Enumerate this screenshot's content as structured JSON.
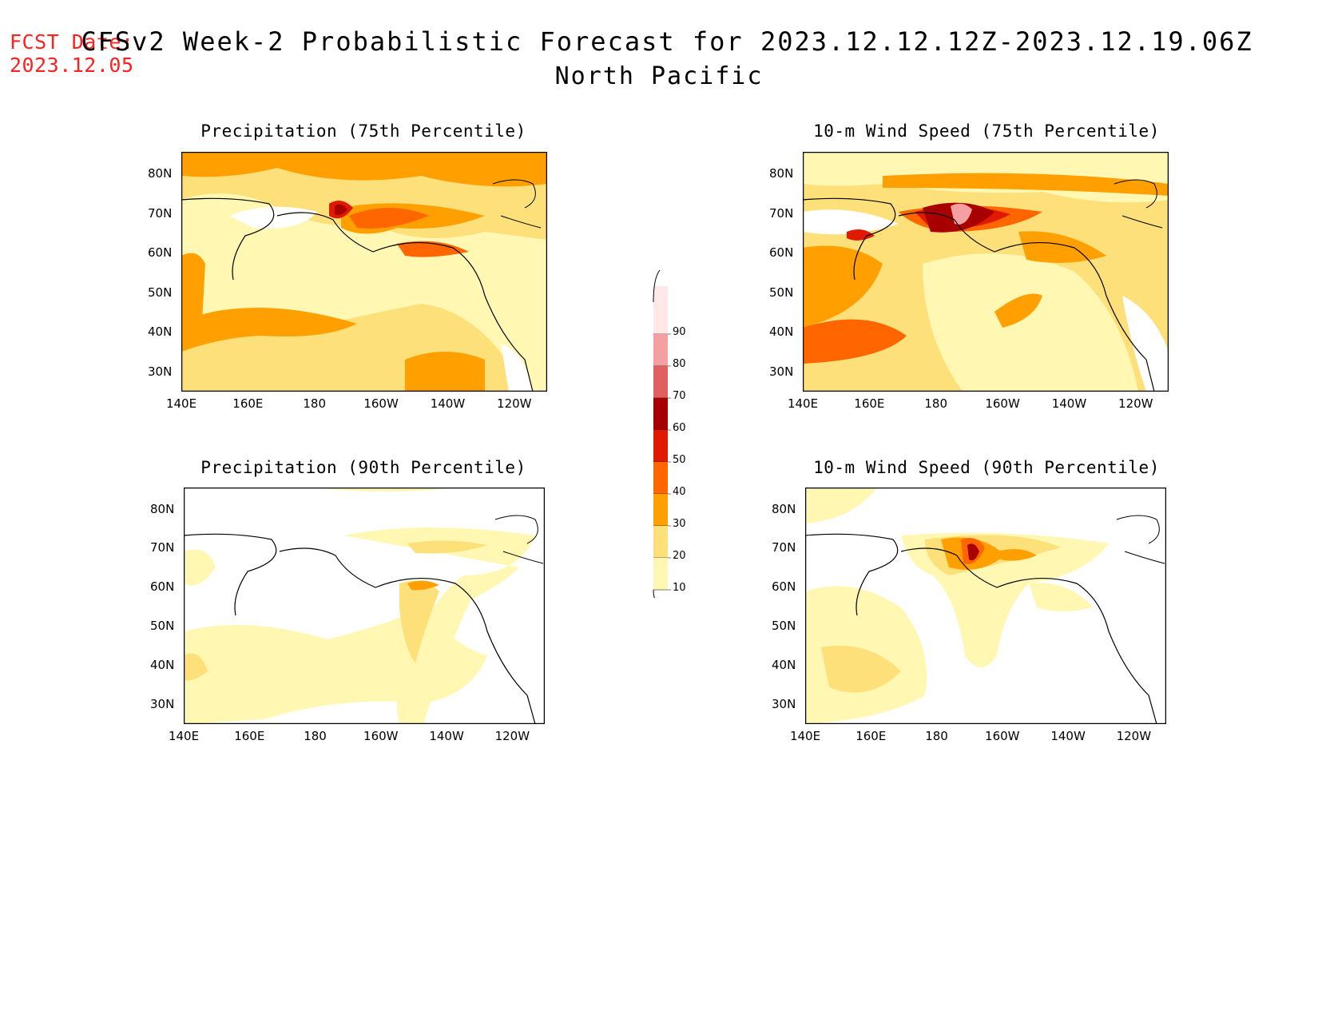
{
  "header": {
    "fcst_label": "FCST Date:",
    "fcst_date": "2023.12.05",
    "title": "CFSv2 Week-2 Probabilistic Forecast for 2023.12.12.12Z-2023.12.19.06Z",
    "subtitle": "North Pacific"
  },
  "panels": [
    {
      "title": "Precipitation (75th Percentile)"
    },
    {
      "title": "10-m Wind Speed (75th Percentile)"
    },
    {
      "title": "Precipitation (90th Percentile)"
    },
    {
      "title": "10-m Wind Speed (90th Percentile)"
    }
  ],
  "axes": {
    "lat_labels": [
      "80N",
      "70N",
      "60N",
      "50N",
      "40N",
      "30N"
    ],
    "lon_labels": [
      "140E",
      "160E",
      "180",
      "160W",
      "140W",
      "120W"
    ]
  },
  "colorbar": {
    "labels": [
      "90",
      "80",
      "70",
      "60",
      "50",
      "40",
      "30",
      "20",
      "10"
    ],
    "colors": [
      "#ffe8e8",
      "#f4a0a0",
      "#e06060",
      "#a80000",
      "#e01a00",
      "#ff6600",
      "#ffa000",
      "#fde07a",
      "#fff7b2"
    ]
  }
}
